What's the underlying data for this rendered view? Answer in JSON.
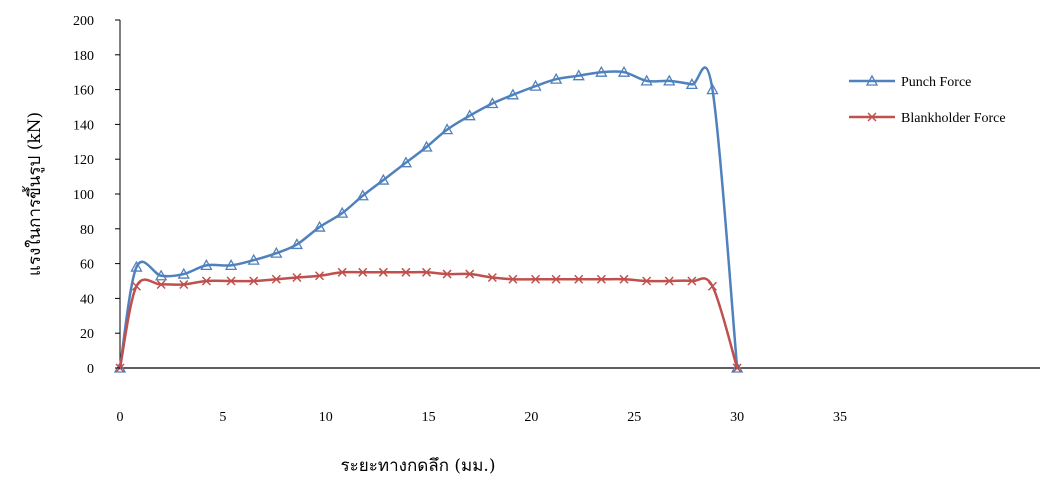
{
  "chart_data": {
    "type": "line",
    "title": "",
    "xlabel": "ระยะทางกดลึก (มม.)",
    "ylabel": "แรงในการขึ้นรูป (kN)",
    "xlim": [
      0,
      35
    ],
    "ylim": [
      0,
      200
    ],
    "xticks": [
      0,
      5,
      10,
      15,
      20,
      25,
      30,
      35
    ],
    "yticks": [
      0,
      20,
      40,
      60,
      80,
      100,
      120,
      140,
      160,
      180,
      200
    ],
    "grid": false,
    "legend_position": "right",
    "series": [
      {
        "name": "Punch Force",
        "color": "#4F81BD",
        "marker": "triangle",
        "x": [
          0,
          0.8,
          2.0,
          3.1,
          4.2,
          5.4,
          6.5,
          7.6,
          8.6,
          9.7,
          10.8,
          11.8,
          12.8,
          13.9,
          14.9,
          15.9,
          17.0,
          18.1,
          19.1,
          20.2,
          21.2,
          22.3,
          23.4,
          24.5,
          25.6,
          26.7,
          27.8,
          28.8,
          30.0
        ],
        "y": [
          0,
          58,
          53,
          54,
          59,
          59,
          62,
          66,
          71,
          81,
          89,
          99,
          108,
          118,
          127,
          137,
          145,
          152,
          157,
          162,
          166,
          168,
          170,
          170,
          165,
          165,
          163,
          160,
          0
        ]
      },
      {
        "name": "Blankholder Force",
        "color": "#C0504D",
        "marker": "x",
        "x": [
          0,
          0.8,
          2.0,
          3.1,
          4.2,
          5.4,
          6.5,
          7.6,
          8.6,
          9.7,
          10.8,
          11.8,
          12.8,
          13.9,
          14.9,
          15.9,
          17.0,
          18.1,
          19.1,
          20.2,
          21.2,
          22.3,
          23.4,
          24.5,
          25.6,
          26.7,
          27.8,
          28.8,
          30.0
        ],
        "y": [
          0,
          47,
          48,
          48,
          50,
          50,
          50,
          51,
          52,
          53,
          55,
          55,
          55,
          55,
          55,
          54,
          54,
          52,
          51,
          51,
          51,
          51,
          51,
          51,
          50,
          50,
          50,
          47,
          0
        ]
      }
    ]
  }
}
